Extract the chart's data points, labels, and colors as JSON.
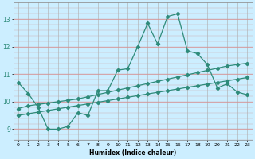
{
  "xlabel": "Humidex (Indice chaleur)",
  "bg_color": "#cceeff",
  "line_color": "#2e8b7a",
  "grid_color": "#bbbbbb",
  "grid_color_h": "#ff9999",
  "x_ticks": [
    0,
    1,
    2,
    3,
    4,
    5,
    6,
    7,
    8,
    9,
    10,
    11,
    12,
    13,
    14,
    15,
    16,
    17,
    18,
    19,
    20,
    21,
    22,
    23
  ],
  "y_ticks": [
    9,
    10,
    11,
    12,
    13
  ],
  "xlim": [
    -0.5,
    23.5
  ],
  "ylim": [
    8.6,
    13.6
  ],
  "line1_y": [
    10.7,
    10.3,
    9.8,
    9.0,
    9.0,
    9.1,
    9.6,
    9.5,
    10.4,
    10.4,
    11.15,
    11.2,
    12.0,
    12.85,
    12.1,
    13.1,
    13.2,
    11.85,
    11.75,
    11.35,
    10.5,
    10.65,
    10.35,
    10.25
  ],
  "line2_y": [
    9.75,
    9.85,
    9.9,
    9.95,
    10.0,
    10.05,
    10.1,
    10.18,
    10.26,
    10.34,
    10.42,
    10.5,
    10.58,
    10.66,
    10.74,
    10.82,
    10.9,
    10.98,
    11.06,
    11.14,
    11.22,
    11.3,
    11.35,
    11.4
  ],
  "line3_y": [
    9.5,
    9.56,
    9.62,
    9.68,
    9.74,
    9.8,
    9.86,
    9.92,
    9.98,
    10.04,
    10.1,
    10.16,
    10.22,
    10.28,
    10.34,
    10.4,
    10.46,
    10.52,
    10.58,
    10.64,
    10.7,
    10.76,
    10.82,
    10.88
  ]
}
